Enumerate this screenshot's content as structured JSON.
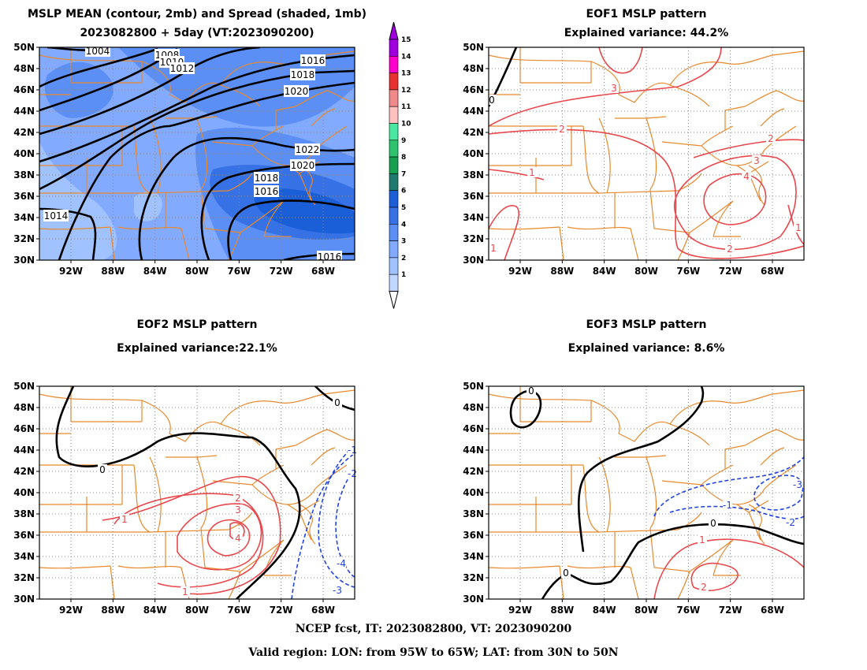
{
  "panels": [
    {
      "id": "mean",
      "title1": "MSLP MEAN (contour, 2mb) and Spread (shaded, 1mb)",
      "title2": "2023082800 + 5day (VT:2023090200)"
    },
    {
      "id": "eof1",
      "title1": "EOF1 MSLP pattern",
      "title2": "Explained variance: 44.2%"
    },
    {
      "id": "eof2",
      "title1": "EOF2 MSLP pattern",
      "title2": "Explained variance:22.1%"
    },
    {
      "id": "eof3",
      "title1": "EOF3 MSLP pattern",
      "title2": "Explained variance: 8.6%"
    }
  ],
  "lat_labels": [
    "50N",
    "48N",
    "46N",
    "44N",
    "42N",
    "40N",
    "38N",
    "36N",
    "34N",
    "32N",
    "30N"
  ],
  "lon_labels": [
    "92W",
    "88W",
    "84W",
    "80W",
    "76W",
    "72W",
    "68W"
  ],
  "colorbar": {
    "labels": [
      "1",
      "2",
      "3",
      "4",
      "5",
      "6",
      "7",
      "8",
      "9",
      "10",
      "11",
      "12",
      "13",
      "14",
      "15"
    ],
    "colors": [
      "#c0d8ff",
      "#a0c2ff",
      "#82aaff",
      "#5c8ff5",
      "#3672e6",
      "#1b5fd8",
      "#1e7a6e",
      "#14a050",
      "#2ec46e",
      "#4ae7a0",
      "#ffc0c0",
      "#f08a8a",
      "#e83030",
      "#ff00cc",
      "#a000e0"
    ]
  },
  "mean_contours": [
    "1004",
    "1008",
    "1010",
    "1012",
    "1016",
    "1018",
    "1020",
    "1022",
    "1020",
    "1018",
    "1016",
    "1014",
    "1016"
  ],
  "eof1_labels": [
    "0",
    "3",
    "2",
    "2",
    "3",
    "4",
    "2",
    "1",
    "1",
    "1"
  ],
  "eof2_labels": [
    "0",
    "0",
    "1",
    "2",
    "3",
    "4",
    "1",
    "-1",
    "-2",
    "-4",
    "-3"
  ],
  "eof3_labels": [
    "0",
    "0",
    "0",
    "1",
    "2",
    "-1",
    "-2",
    "-3"
  ],
  "colors": {
    "land": "#e8892c",
    "positive": "#e8474c",
    "negative": "#2244dd",
    "zero": "#000000",
    "grid": "#888888"
  },
  "footer": {
    "line1": "NCEP fcst, IT: 2023082800, VT: 2023090200",
    "line2": "Valid region: LON: from 95W to 65W; LAT: from 30N to 50N"
  }
}
